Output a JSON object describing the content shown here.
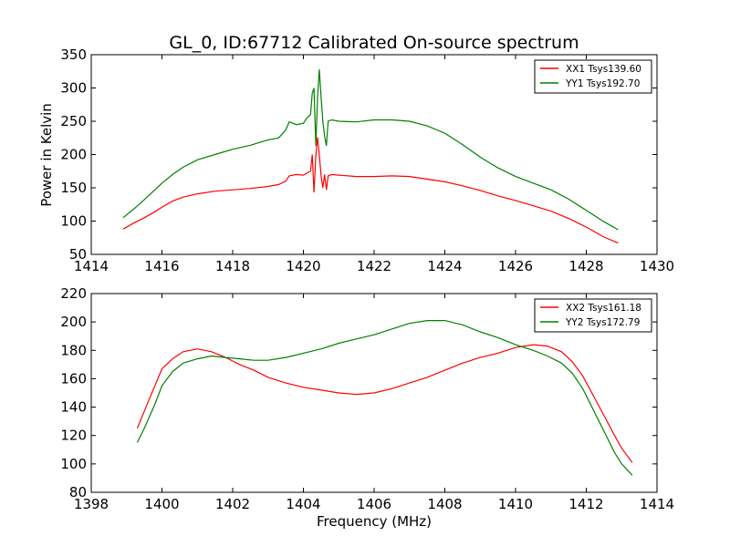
{
  "figure": {
    "title": "GL_0, ID:67712 Calibrated On-source spectrum",
    "xlabel": "Frequency (MHz)",
    "ylabel": "Power in Kelvin"
  },
  "chart_data": [
    {
      "type": "line",
      "title": "GL_0, ID:67712 Calibrated On-source spectrum",
      "xlabel": "",
      "ylabel": "Power in Kelvin",
      "xlim": [
        1414,
        1430
      ],
      "ylim": [
        50,
        350
      ],
      "xticks": [
        1414,
        1416,
        1418,
        1420,
        1422,
        1424,
        1426,
        1428,
        1430
      ],
      "yticks": [
        50,
        100,
        150,
        200,
        250,
        300,
        350
      ],
      "grid": false,
      "legend": "top-right",
      "series": [
        {
          "name": "XX1 Tsys139.60",
          "color": "#ff0000",
          "x": [
            1414.9,
            1415.2,
            1415.5,
            1415.8,
            1416.0,
            1416.3,
            1416.6,
            1417.0,
            1417.5,
            1418.0,
            1418.5,
            1419.0,
            1419.3,
            1419.5,
            1419.6,
            1419.8,
            1420.0,
            1420.1,
            1420.2,
            1420.25,
            1420.3,
            1420.35,
            1420.4,
            1420.45,
            1420.5,
            1420.55,
            1420.6,
            1420.65,
            1420.7,
            1420.8,
            1421.0,
            1421.5,
            1422.0,
            1422.5,
            1423.0,
            1423.5,
            1424.0,
            1424.5,
            1425.0,
            1425.5,
            1426.0,
            1426.5,
            1427.0,
            1427.5,
            1428.0,
            1428.5,
            1428.9
          ],
          "y": [
            88,
            97,
            105,
            114,
            121,
            130,
            136,
            141,
            145,
            147,
            149,
            152,
            155,
            160,
            168,
            170,
            169,
            172,
            175,
            200,
            143,
            198,
            226,
            200,
            168,
            150,
            170,
            147,
            168,
            170,
            169,
            167,
            167,
            168,
            167,
            163,
            159,
            153,
            146,
            138,
            131,
            123,
            115,
            104,
            91,
            76,
            67
          ]
        },
        {
          "name": "YY1 Tsys192.70",
          "color": "#008000",
          "x": [
            1414.9,
            1415.2,
            1415.5,
            1415.8,
            1416.0,
            1416.3,
            1416.6,
            1417.0,
            1417.5,
            1418.0,
            1418.5,
            1419.0,
            1419.3,
            1419.5,
            1419.6,
            1419.8,
            1420.0,
            1420.1,
            1420.2,
            1420.25,
            1420.3,
            1420.35,
            1420.4,
            1420.45,
            1420.5,
            1420.55,
            1420.6,
            1420.65,
            1420.7,
            1420.8,
            1421.0,
            1421.5,
            1422.0,
            1422.5,
            1423.0,
            1423.5,
            1424.0,
            1424.5,
            1425.0,
            1425.5,
            1426.0,
            1426.5,
            1427.0,
            1427.5,
            1428.0,
            1428.5,
            1428.9
          ],
          "y": [
            105,
            118,
            132,
            147,
            157,
            170,
            181,
            192,
            200,
            208,
            214,
            222,
            225,
            237,
            249,
            245,
            247,
            255,
            260,
            292,
            300,
            213,
            285,
            328,
            286,
            250,
            228,
            213,
            250,
            252,
            250,
            249,
            252,
            252,
            250,
            243,
            232,
            215,
            196,
            180,
            167,
            157,
            147,
            133,
            116,
            99,
            87
          ]
        }
      ]
    },
    {
      "type": "line",
      "title": "",
      "xlabel": "Frequency (MHz)",
      "ylabel": "",
      "xlim": [
        1398,
        1414
      ],
      "ylim": [
        80,
        220
      ],
      "xticks": [
        1398,
        1400,
        1402,
        1404,
        1406,
        1408,
        1410,
        1412,
        1414
      ],
      "yticks": [
        80,
        100,
        120,
        140,
        160,
        180,
        200,
        220
      ],
      "grid": false,
      "legend": "top-right",
      "series": [
        {
          "name": "XX2 Tsys161.18",
          "color": "#ff0000",
          "x": [
            1399.3,
            1399.5,
            1399.8,
            1400.0,
            1400.3,
            1400.6,
            1401.0,
            1401.4,
            1401.8,
            1402.2,
            1402.6,
            1403.0,
            1403.5,
            1404.0,
            1404.5,
            1405.0,
            1405.5,
            1406.0,
            1406.5,
            1407.0,
            1407.5,
            1408.0,
            1408.5,
            1409.0,
            1409.5,
            1410.0,
            1410.5,
            1410.9,
            1411.3,
            1411.6,
            1411.9,
            1412.2,
            1412.5,
            1412.8,
            1413.0,
            1413.3
          ],
          "y": [
            125,
            137,
            155,
            167,
            174,
            179,
            181,
            179,
            175,
            170,
            166,
            161,
            157,
            154,
            152,
            150,
            149,
            150,
            153,
            157,
            161,
            166,
            171,
            175,
            178,
            182,
            184,
            183,
            179,
            172,
            162,
            148,
            134,
            120,
            111,
            101
          ]
        },
        {
          "name": "YY2 Tsys172.79",
          "color": "#008000",
          "x": [
            1399.3,
            1399.5,
            1399.8,
            1400.0,
            1400.3,
            1400.6,
            1401.0,
            1401.4,
            1401.8,
            1402.2,
            1402.6,
            1403.0,
            1403.5,
            1404.0,
            1404.5,
            1405.0,
            1405.5,
            1406.0,
            1406.5,
            1407.0,
            1407.5,
            1408.0,
            1408.5,
            1409.0,
            1409.5,
            1410.0,
            1410.5,
            1410.9,
            1411.3,
            1411.6,
            1411.9,
            1412.2,
            1412.5,
            1412.8,
            1413.0,
            1413.3
          ],
          "y": [
            115,
            125,
            142,
            155,
            165,
            171,
            174,
            176,
            175,
            174,
            173,
            173,
            175,
            178,
            181,
            185,
            188,
            191,
            195,
            199,
            201,
            201,
            198,
            193,
            189,
            184,
            180,
            176,
            171,
            164,
            153,
            138,
            123,
            108,
            100,
            92
          ]
        }
      ]
    }
  ]
}
